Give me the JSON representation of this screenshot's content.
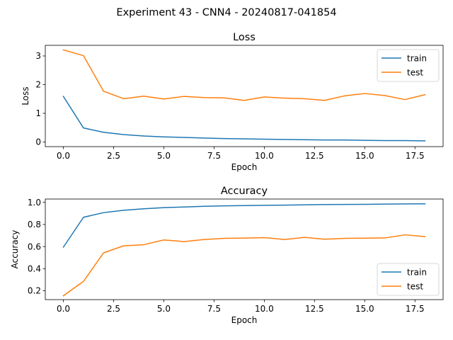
{
  "figure_title": "Experiment 43 - CNN4 - 20240817-041854",
  "colors": {
    "train": "#1f77b4",
    "test": "#ff7f0e"
  },
  "chart_data": [
    {
      "type": "line",
      "title": "Loss",
      "xlabel": "Epoch",
      "ylabel": "Loss",
      "xlim": [
        -0.9,
        18.9
      ],
      "ylim": [
        -0.16,
        3.37
      ],
      "xticks": [
        0,
        2.5,
        5,
        7.5,
        10,
        12.5,
        15,
        17.5
      ],
      "xtick_labels": [
        "0.0",
        "2.5",
        "5.0",
        "7.5",
        "10.0",
        "12.5",
        "15.0",
        "17.5"
      ],
      "yticks": [
        0,
        1,
        2,
        3
      ],
      "ytick_labels": [
        "0",
        "1",
        "2",
        "3"
      ],
      "legend_position": "top-right",
      "x": [
        0,
        1,
        2,
        3,
        4,
        5,
        6,
        7,
        8,
        9,
        10,
        11,
        12,
        13,
        14,
        15,
        16,
        17,
        18
      ],
      "series": [
        {
          "name": "train",
          "values": [
            1.59,
            0.49,
            0.34,
            0.26,
            0.21,
            0.18,
            0.16,
            0.14,
            0.12,
            0.11,
            0.1,
            0.09,
            0.08,
            0.07,
            0.07,
            0.06,
            0.05,
            0.05,
            0.04
          ]
        },
        {
          "name": "test",
          "values": [
            3.21,
            3.01,
            1.77,
            1.51,
            1.6,
            1.5,
            1.59,
            1.55,
            1.54,
            1.45,
            1.57,
            1.53,
            1.51,
            1.45,
            1.61,
            1.69,
            1.62,
            1.48,
            1.65
          ]
        }
      ]
    },
    {
      "type": "line",
      "title": "Accuracy",
      "xlabel": "Epoch",
      "ylabel": "Accuracy",
      "xlim": [
        -0.9,
        18.9
      ],
      "ylim": [
        0.12,
        1.03
      ],
      "xticks": [
        0,
        2.5,
        5,
        7.5,
        10,
        12.5,
        15,
        17.5
      ],
      "xtick_labels": [
        "0.0",
        "2.5",
        "5.0",
        "7.5",
        "10.0",
        "12.5",
        "15.0",
        "17.5"
      ],
      "yticks": [
        0.2,
        0.4,
        0.6,
        0.8,
        1.0
      ],
      "ytick_labels": [
        "0.2",
        "0.4",
        "0.6",
        "0.8",
        "1.0"
      ],
      "legend_position": "bottom-right",
      "x": [
        0,
        1,
        2,
        3,
        4,
        5,
        6,
        7,
        8,
        9,
        10,
        11,
        12,
        13,
        14,
        15,
        16,
        17,
        18
      ],
      "series": [
        {
          "name": "train",
          "values": [
            0.595,
            0.865,
            0.907,
            0.928,
            0.942,
            0.952,
            0.958,
            0.964,
            0.968,
            0.971,
            0.973,
            0.975,
            0.978,
            0.98,
            0.981,
            0.982,
            0.984,
            0.986,
            0.987
          ]
        },
        {
          "name": "test",
          "values": [
            0.155,
            0.285,
            0.543,
            0.607,
            0.617,
            0.66,
            0.645,
            0.664,
            0.674,
            0.677,
            0.681,
            0.664,
            0.683,
            0.666,
            0.674,
            0.676,
            0.678,
            0.706,
            0.69
          ]
        }
      ]
    }
  ]
}
